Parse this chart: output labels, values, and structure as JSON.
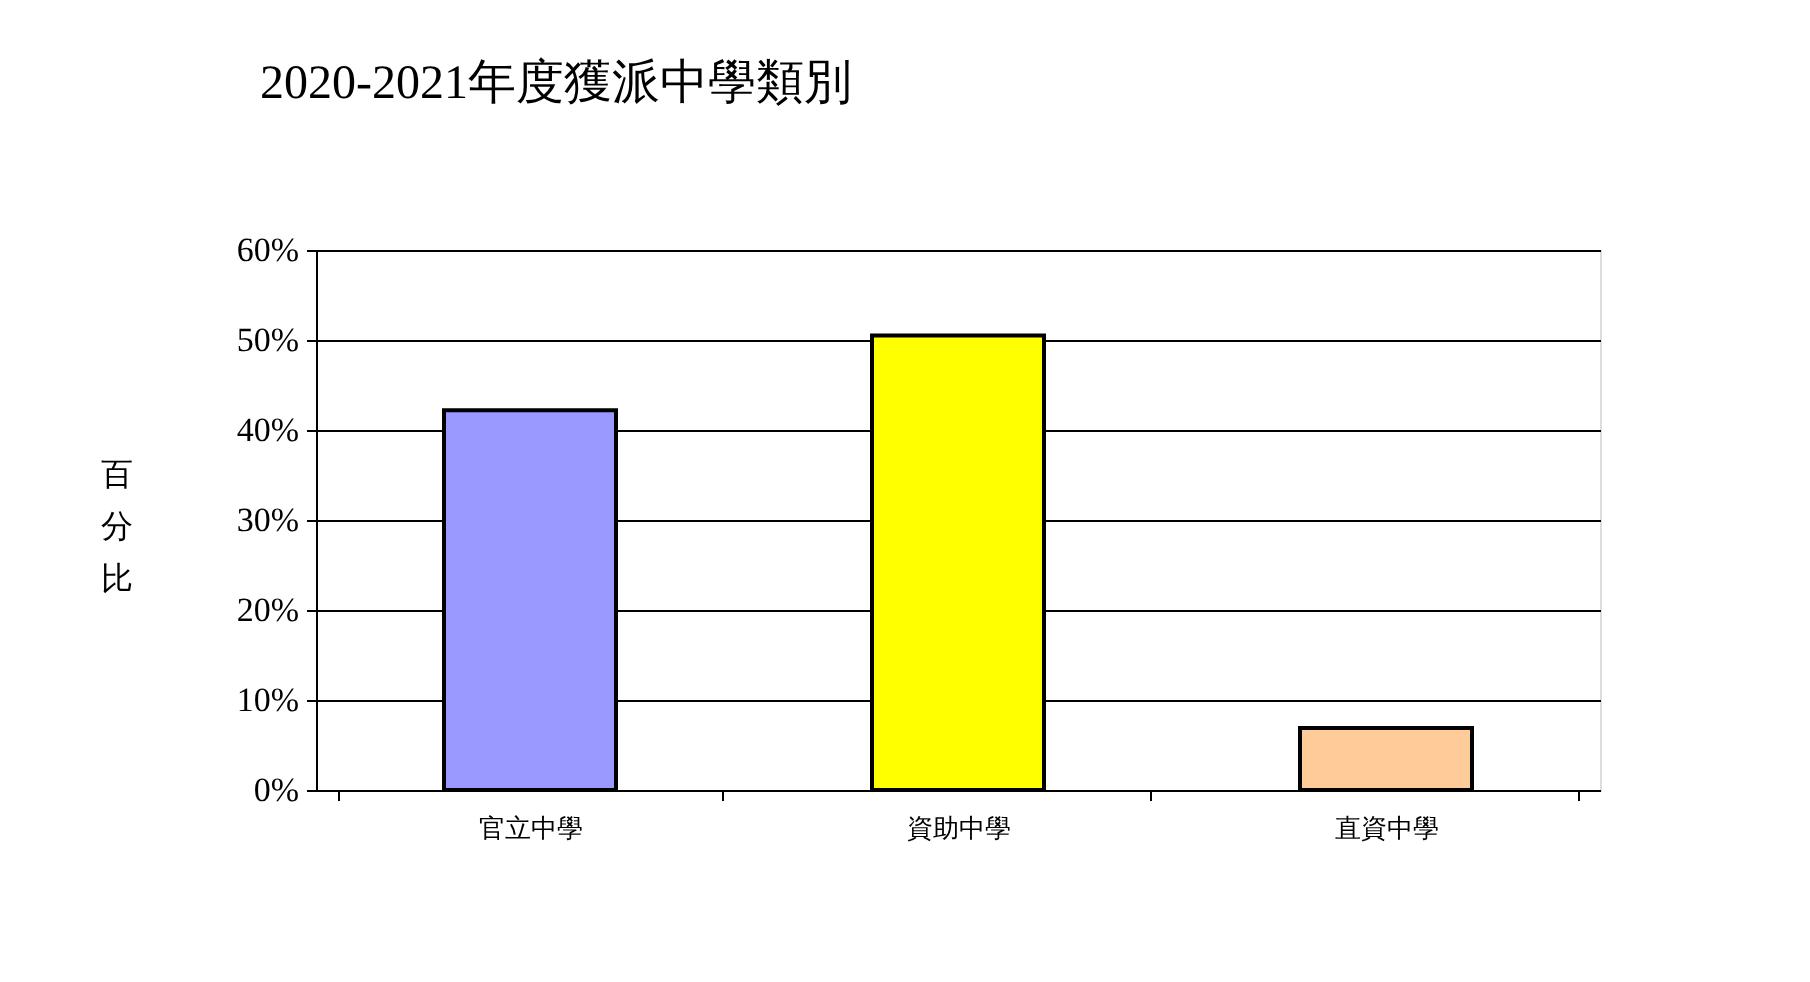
{
  "chart_data": {
    "type": "bar",
    "title": "2020-2021年度獲派中學類別",
    "ylabel": "百分比",
    "categories": [
      "官立中學",
      "資助中學",
      "直資中學"
    ],
    "values": [
      42.2,
      50.5,
      6.9
    ],
    "colors": [
      "#9999ff",
      "#ffff00",
      "#ffcc99"
    ],
    "ylim": [
      0,
      60
    ],
    "yticks": [
      {
        "value": 0,
        "label": "0%"
      },
      {
        "value": 10,
        "label": "10%"
      },
      {
        "value": 20,
        "label": "20%"
      },
      {
        "value": 30,
        "label": "30%"
      },
      {
        "value": 40,
        "label": "40%"
      },
      {
        "value": 50,
        "label": "50%"
      },
      {
        "value": 60,
        "label": "60%"
      }
    ],
    "grid": "y"
  }
}
